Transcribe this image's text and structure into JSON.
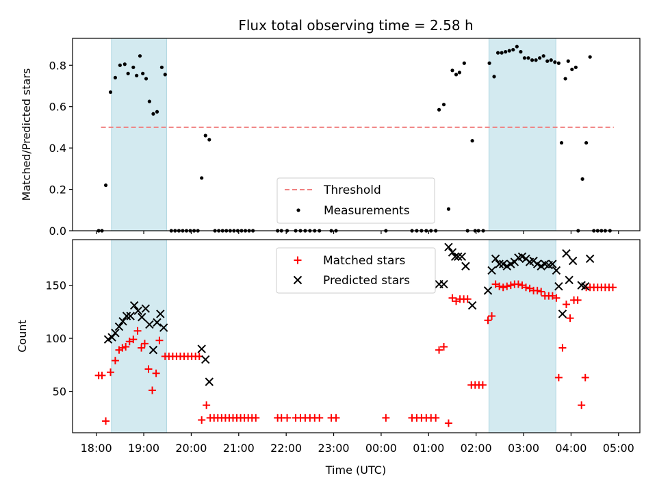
{
  "chart_data": {
    "title": "Flux total observing time = 2.58 h",
    "xlabel": "Time (UTC)",
    "x_unit": "hours since 18:00 UTC",
    "x_ticks": [
      {
        "x": 0,
        "label": "18:00"
      },
      {
        "x": 1,
        "label": "19:00"
      },
      {
        "x": 2,
        "label": "20:00"
      },
      {
        "x": 3,
        "label": "21:00"
      },
      {
        "x": 4,
        "label": "22:00"
      },
      {
        "x": 5,
        "label": "23:00"
      },
      {
        "x": 6,
        "label": "00:00"
      },
      {
        "x": 7,
        "label": "01:00"
      },
      {
        "x": 8,
        "label": "02:00"
      },
      {
        "x": 9,
        "label": "03:00"
      },
      {
        "x": 10,
        "label": "04:00"
      },
      {
        "x": 11,
        "label": "05:00"
      }
    ],
    "xlim": [
      -0.5,
      11.45
    ],
    "shaded_intervals": [
      [
        0.32,
        1.48
      ],
      [
        8.27,
        9.68
      ]
    ],
    "shade_color": "#d3eaf0",
    "top": {
      "type": "scatter",
      "ylabel": "Matched/Predicted stars",
      "ylim": [
        0,
        0.93
      ],
      "y_ticks": [
        0.0,
        0.2,
        0.4,
        0.6,
        0.8
      ],
      "y_tick_labels": [
        "0.0",
        "0.2",
        "0.4",
        "0.6",
        "0.8"
      ],
      "threshold": {
        "name": "Threshold",
        "value": 0.5,
        "x_range": [
          0.1,
          10.9
        ],
        "color": "#f08080"
      },
      "measurements_name": "Measurements",
      "measurements_color": "#000000",
      "measurements": [
        [
          0.05,
          0
        ],
        [
          0.12,
          0
        ],
        [
          0.2,
          0.22
        ],
        [
          0.3,
          0.67
        ],
        [
          0.4,
          0.74
        ],
        [
          0.5,
          0.8
        ],
        [
          0.6,
          0.805
        ],
        [
          0.67,
          0.76
        ],
        [
          0.78,
          0.79
        ],
        [
          0.85,
          0.75
        ],
        [
          0.92,
          0.845
        ],
        [
          0.98,
          0.76
        ],
        [
          1.05,
          0.735
        ],
        [
          1.12,
          0.625
        ],
        [
          1.2,
          0.565
        ],
        [
          1.28,
          0.575
        ],
        [
          1.38,
          0.79
        ],
        [
          1.45,
          0.755
        ],
        [
          1.58,
          0
        ],
        [
          1.66,
          0
        ],
        [
          1.74,
          0
        ],
        [
          1.82,
          0
        ],
        [
          1.9,
          0
        ],
        [
          1.98,
          0
        ],
        [
          2.06,
          0
        ],
        [
          2.14,
          0
        ],
        [
          2.22,
          0.255
        ],
        [
          2.3,
          0.46
        ],
        [
          2.38,
          0.44
        ],
        [
          2.5,
          0
        ],
        [
          2.58,
          0
        ],
        [
          2.66,
          0
        ],
        [
          2.74,
          0
        ],
        [
          2.82,
          0
        ],
        [
          2.9,
          0
        ],
        [
          2.98,
          0
        ],
        [
          3.06,
          0
        ],
        [
          3.14,
          0
        ],
        [
          3.22,
          0
        ],
        [
          3.3,
          0
        ],
        [
          3.82,
          0
        ],
        [
          3.9,
          0
        ],
        [
          4.02,
          0
        ],
        [
          4.2,
          0
        ],
        [
          4.3,
          0
        ],
        [
          4.4,
          0
        ],
        [
          4.5,
          0
        ],
        [
          4.6,
          0
        ],
        [
          4.7,
          0
        ],
        [
          4.95,
          0
        ],
        [
          5.05,
          0
        ],
        [
          6.1,
          0
        ],
        [
          6.65,
          0
        ],
        [
          6.75,
          0
        ],
        [
          6.85,
          0
        ],
        [
          6.95,
          0
        ],
        [
          7.05,
          0
        ],
        [
          7.15,
          0
        ],
        [
          7.22,
          0.585
        ],
        [
          7.32,
          0.61
        ],
        [
          7.42,
          0.105
        ],
        [
          7.5,
          0.775
        ],
        [
          7.58,
          0.755
        ],
        [
          7.65,
          0.765
        ],
        [
          7.75,
          0.81
        ],
        [
          7.92,
          0.435
        ],
        [
          7.82,
          0
        ],
        [
          7.98,
          0
        ],
        [
          8.05,
          0
        ],
        [
          8.15,
          0
        ],
        [
          8.28,
          0.81
        ],
        [
          8.38,
          0.745
        ],
        [
          8.46,
          0.86
        ],
        [
          8.54,
          0.86
        ],
        [
          8.62,
          0.865
        ],
        [
          8.7,
          0.87
        ],
        [
          8.78,
          0.875
        ],
        [
          8.86,
          0.89
        ],
        [
          8.94,
          0.865
        ],
        [
          9.02,
          0.835
        ],
        [
          9.1,
          0.835
        ],
        [
          9.18,
          0.825
        ],
        [
          9.26,
          0.825
        ],
        [
          9.34,
          0.835
        ],
        [
          9.42,
          0.845
        ],
        [
          9.5,
          0.82
        ],
        [
          9.58,
          0.825
        ],
        [
          9.66,
          0.815
        ],
        [
          9.74,
          0.81
        ],
        [
          9.8,
          0.425
        ],
        [
          9.88,
          0.735
        ],
        [
          9.94,
          0.82
        ],
        [
          10.02,
          0.78
        ],
        [
          10.1,
          0.79
        ],
        [
          10.15,
          0
        ],
        [
          10.24,
          0.25
        ],
        [
          10.32,
          0.425
        ],
        [
          10.4,
          0.84
        ],
        [
          10.48,
          0
        ],
        [
          10.56,
          0
        ],
        [
          10.64,
          0
        ],
        [
          10.72,
          0
        ],
        [
          10.82,
          0
        ]
      ]
    },
    "bottom": {
      "type": "scatter",
      "ylabel": "Count",
      "ylim": [
        11,
        193
      ],
      "y_ticks": [
        50,
        100,
        150
      ],
      "y_tick_labels": [
        "50",
        "100",
        "150"
      ],
      "series": [
        {
          "name": "Matched stars",
          "marker": "plus",
          "color": "#ff0000",
          "points": [
            [
              0.05,
              65
            ],
            [
              0.12,
              65
            ],
            [
              0.2,
              22
            ],
            [
              0.3,
              68
            ],
            [
              0.4,
              79
            ],
            [
              0.48,
              89
            ],
            [
              0.55,
              91
            ],
            [
              0.62,
              92
            ],
            [
              0.7,
              97
            ],
            [
              0.78,
              99
            ],
            [
              0.87,
              107
            ],
            [
              0.95,
              91
            ],
            [
              1.02,
              95
            ],
            [
              1.1,
              71
            ],
            [
              1.18,
              51
            ],
            [
              1.26,
              67
            ],
            [
              1.33,
              98
            ],
            [
              1.45,
              83
            ],
            [
              1.53,
              83
            ],
            [
              1.61,
              83
            ],
            [
              1.69,
              83
            ],
            [
              1.77,
              83
            ],
            [
              1.85,
              83
            ],
            [
              1.93,
              83
            ],
            [
              2.01,
              83
            ],
            [
              2.09,
              83
            ],
            [
              2.17,
              83
            ],
            [
              2.22,
              23
            ],
            [
              2.32,
              37
            ],
            [
              2.4,
              25
            ],
            [
              2.48,
              25
            ],
            [
              2.56,
              25
            ],
            [
              2.64,
              25
            ],
            [
              2.72,
              25
            ],
            [
              2.8,
              25
            ],
            [
              2.88,
              25
            ],
            [
              2.96,
              25
            ],
            [
              3.04,
              25
            ],
            [
              3.12,
              25
            ],
            [
              3.2,
              25
            ],
            [
              3.28,
              25
            ],
            [
              3.36,
              25
            ],
            [
              3.82,
              25
            ],
            [
              3.9,
              25
            ],
            [
              4.02,
              25
            ],
            [
              4.2,
              25
            ],
            [
              4.3,
              25
            ],
            [
              4.4,
              25
            ],
            [
              4.5,
              25
            ],
            [
              4.6,
              25
            ],
            [
              4.7,
              25
            ],
            [
              4.95,
              25
            ],
            [
              5.05,
              25
            ],
            [
              6.1,
              25
            ],
            [
              6.65,
              25
            ],
            [
              6.75,
              25
            ],
            [
              6.85,
              25
            ],
            [
              6.95,
              25
            ],
            [
              7.05,
              25
            ],
            [
              7.15,
              25
            ],
            [
              7.22,
              89
            ],
            [
              7.32,
              92
            ],
            [
              7.42,
              20
            ],
            [
              7.5,
              138
            ],
            [
              7.58,
              135
            ],
            [
              7.66,
              137
            ],
            [
              7.74,
              137
            ],
            [
              7.82,
              137
            ],
            [
              7.9,
              56
            ],
            [
              7.98,
              56
            ],
            [
              8.06,
              56
            ],
            [
              8.14,
              56
            ],
            [
              8.25,
              117
            ],
            [
              8.33,
              121
            ],
            [
              8.41,
              151
            ],
            [
              8.49,
              149
            ],
            [
              8.57,
              148
            ],
            [
              8.65,
              149
            ],
            [
              8.73,
              150
            ],
            [
              8.81,
              151
            ],
            [
              8.89,
              151
            ],
            [
              8.97,
              150
            ],
            [
              9.05,
              148
            ],
            [
              9.13,
              147
            ],
            [
              9.21,
              145
            ],
            [
              9.29,
              145
            ],
            [
              9.37,
              144
            ],
            [
              9.45,
              140
            ],
            [
              9.53,
              140
            ],
            [
              9.61,
              140
            ],
            [
              9.69,
              138
            ],
            [
              9.74,
              63
            ],
            [
              9.82,
              91
            ],
            [
              9.9,
              132
            ],
            [
              9.98,
              119
            ],
            [
              10.06,
              136
            ],
            [
              10.14,
              136
            ],
            [
              10.22,
              37
            ],
            [
              10.3,
              63
            ],
            [
              10.32,
              148
            ],
            [
              10.4,
              148
            ],
            [
              10.48,
              148
            ],
            [
              10.56,
              148
            ],
            [
              10.64,
              148
            ],
            [
              10.72,
              148
            ],
            [
              10.8,
              148
            ],
            [
              10.88,
              148
            ]
          ]
        },
        {
          "name": "Predicted stars",
          "marker": "x",
          "color": "#000000",
          "points": [
            [
              0.25,
              99
            ],
            [
              0.33,
              101
            ],
            [
              0.4,
              105
            ],
            [
              0.48,
              111
            ],
            [
              0.56,
              116
            ],
            [
              0.64,
              121
            ],
            [
              0.72,
              121
            ],
            [
              0.8,
              131
            ],
            [
              0.88,
              126
            ],
            [
              0.96,
              120
            ],
            [
              1.04,
              128
            ],
            [
              1.12,
              113
            ],
            [
              1.2,
              89
            ],
            [
              1.28,
              115
            ],
            [
              1.35,
              123
            ],
            [
              1.42,
              110
            ],
            [
              2.22,
              90
            ],
            [
              2.3,
              80
            ],
            [
              2.38,
              59
            ],
            [
              7.22,
              151
            ],
            [
              7.32,
              151
            ],
            [
              7.42,
              186
            ],
            [
              7.5,
              181
            ],
            [
              7.56,
              177
            ],
            [
              7.62,
              177
            ],
            [
              7.7,
              177
            ],
            [
              7.78,
              168
            ],
            [
              7.92,
              131
            ],
            [
              8.25,
              145
            ],
            [
              8.33,
              164
            ],
            [
              8.41,
              175
            ],
            [
              8.49,
              170
            ],
            [
              8.57,
              170
            ],
            [
              8.65,
              168
            ],
            [
              8.73,
              170
            ],
            [
              8.81,
              172
            ],
            [
              8.89,
              176
            ],
            [
              8.97,
              177
            ],
            [
              9.05,
              175
            ],
            [
              9.13,
              172
            ],
            [
              9.21,
              173
            ],
            [
              9.29,
              170
            ],
            [
              9.37,
              168
            ],
            [
              9.45,
              170
            ],
            [
              9.53,
              169
            ],
            [
              9.61,
              170
            ],
            [
              9.69,
              164
            ],
            [
              9.74,
              149
            ],
            [
              9.82,
              123
            ],
            [
              9.9,
              180
            ],
            [
              9.96,
              155
            ],
            [
              10.04,
              173
            ],
            [
              10.22,
              150
            ],
            [
              10.3,
              149
            ],
            [
              10.4,
              175
            ]
          ]
        }
      ]
    }
  }
}
